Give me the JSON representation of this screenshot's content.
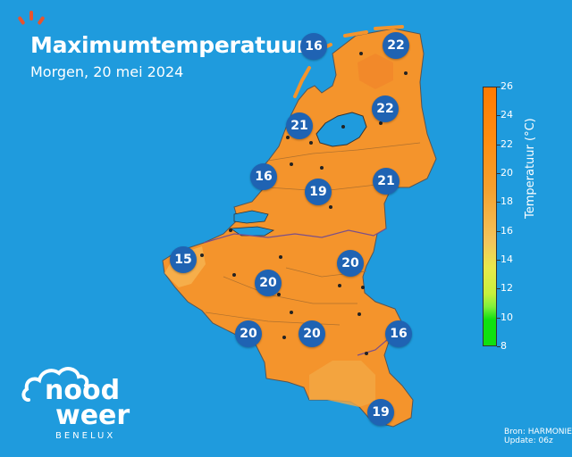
{
  "header": {
    "title": "Maximumtemperatuur",
    "subtitle": "Morgen, 20 mei 2024"
  },
  "map": {
    "region": "Benelux",
    "fill_color": "#f4942c",
    "sea_color": "#1f9bdd",
    "city_temperatures": [
      {
        "value": "16"
      },
      {
        "value": "22"
      },
      {
        "value": "22"
      },
      {
        "value": "21"
      },
      {
        "value": "16"
      },
      {
        "value": "19"
      },
      {
        "value": "21"
      },
      {
        "value": "15"
      },
      {
        "value": "20"
      },
      {
        "value": "20"
      },
      {
        "value": "20"
      },
      {
        "value": "20"
      },
      {
        "value": "16"
      },
      {
        "value": "19"
      }
    ]
  },
  "colorbar": {
    "label": "Temperatuur (°C)",
    "ticks": [
      "26",
      "24",
      "22",
      "20",
      "18",
      "16",
      "14",
      "12",
      "10",
      "8"
    ],
    "range": [
      8,
      26
    ]
  },
  "source": {
    "line1": "Bron: HARMONIE",
    "line2": "Update: 06z"
  },
  "logo": {
    "word1": "nood",
    "word2": "weer",
    "word3": "BENELUX"
  }
}
